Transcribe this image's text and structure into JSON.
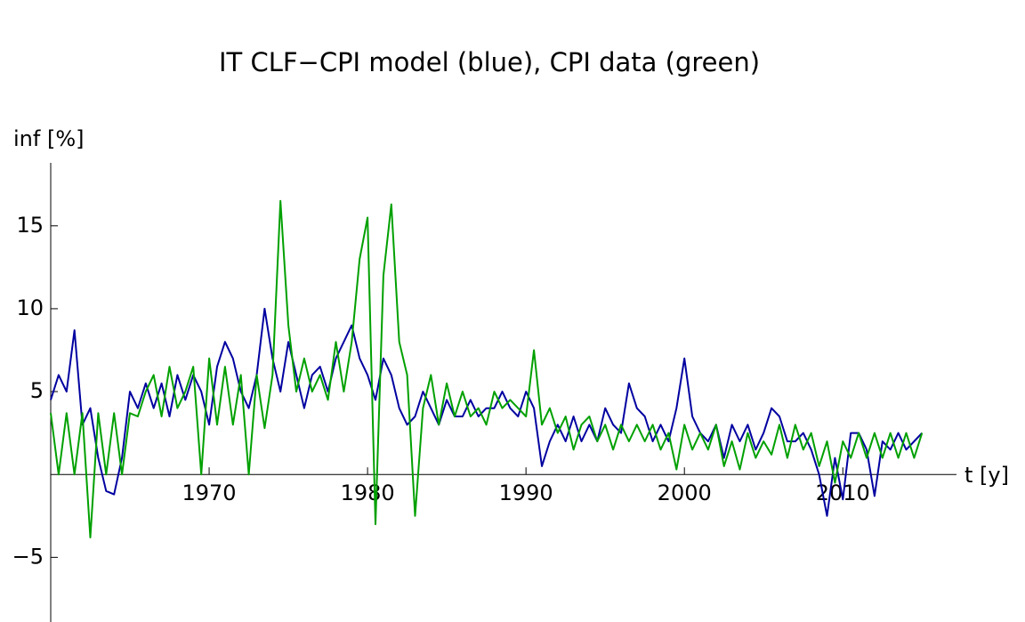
{
  "chart_data": {
    "type": "line",
    "title": "IT CLF−CPI model (blue), CPI data (green)",
    "x_label": "t [y]",
    "y_label": "inf [%]",
    "x": [
      1960,
      1960.5,
      1961,
      1961.5,
      1962,
      1962.5,
      1963,
      1963.5,
      1964,
      1964.5,
      1965,
      1965.5,
      1966,
      1966.5,
      1967,
      1967.5,
      1968,
      1968.5,
      1969,
      1969.5,
      1970,
      1970.5,
      1971,
      1971.5,
      1972,
      1972.5,
      1973,
      1973.5,
      1974,
      1974.5,
      1975,
      1975.5,
      1976,
      1976.5,
      1977,
      1977.5,
      1978,
      1978.5,
      1979,
      1979.5,
      1980,
      1980.5,
      1981,
      1981.5,
      1982,
      1982.5,
      1983,
      1983.5,
      1984,
      1984.5,
      1985,
      1985.5,
      1986,
      1986.5,
      1987,
      1987.5,
      1988,
      1988.5,
      1989,
      1989.5,
      1990,
      1990.5,
      1991,
      1991.5,
      1992,
      1992.5,
      1993,
      1993.5,
      1994,
      1994.5,
      1995,
      1995.5,
      1996,
      1996.5,
      1997,
      1997.5,
      1998,
      1998.5,
      1999,
      1999.5,
      2000,
      2000.5,
      2001,
      2001.5,
      2002,
      2002.5,
      2003,
      2003.5,
      2004,
      2004.5,
      2005,
      2005.5,
      2006,
      2006.5,
      2007,
      2007.5,
      2008,
      2008.5,
      2009,
      2009.5,
      2010,
      2010.5,
      2011,
      2011.5,
      2012,
      2012.5,
      2013,
      2013.5,
      2014,
      2014.5,
      2015
    ],
    "series": [
      {
        "name": "model",
        "color": "#0000a0",
        "values": [
          4.5,
          6,
          5,
          8.7,
          3,
          4,
          1,
          -1,
          -1.2,
          1,
          5,
          4,
          5.5,
          4,
          5.5,
          3.5,
          6,
          4.5,
          6,
          5,
          3,
          6.5,
          8,
          7,
          5,
          4,
          6,
          10,
          7,
          5,
          8,
          6,
          4,
          6,
          6.5,
          5,
          7,
          8,
          9,
          7,
          6,
          4.5,
          7,
          6,
          4,
          3,
          3.5,
          5,
          4,
          3,
          4.5,
          3.5,
          3.5,
          4.5,
          3.5,
          4,
          4,
          5,
          4,
          3.5,
          5,
          4,
          0.5,
          2,
          3,
          2,
          3.5,
          2,
          3,
          2,
          4,
          3,
          2.5,
          5.5,
          4,
          3.5,
          2,
          3,
          2,
          4,
          7,
          3.5,
          2.5,
          2,
          3,
          1,
          3,
          2,
          3,
          1.5,
          2.5,
          4,
          3.5,
          2,
          2,
          2.5,
          1.5,
          0,
          -2.5,
          1,
          -1.5,
          2.5,
          2.5,
          1.5,
          -1.3,
          2,
          1.5,
          2.5,
          1.5,
          2,
          2.5
        ]
      },
      {
        "name": "data",
        "color": "#00a000",
        "values": [
          3.7,
          0,
          3.7,
          0,
          3.7,
          -3.8,
          3.7,
          0,
          3.7,
          0,
          3.7,
          3.5,
          5,
          6,
          3.5,
          6.5,
          4,
          5,
          6.5,
          0,
          7,
          3,
          6.5,
          3,
          6,
          0,
          6,
          2.8,
          6,
          16.5,
          9,
          5,
          7,
          5,
          6,
          4.5,
          8,
          5,
          8,
          13,
          15.5,
          -3,
          12,
          16.3,
          8,
          6,
          -2.5,
          4,
          6,
          3,
          5.5,
          3.5,
          5,
          3.5,
          4,
          3,
          5,
          4,
          4.5,
          4,
          3.5,
          7.5,
          3,
          4,
          2.5,
          3.5,
          1.5,
          3,
          3.5,
          2,
          3,
          1.5,
          3,
          2,
          3,
          2,
          3,
          1.5,
          2.5,
          0.3,
          3,
          1.5,
          2.5,
          1.5,
          3,
          0.5,
          2,
          0.3,
          2.5,
          1,
          2,
          1.2,
          3,
          1,
          3,
          1.5,
          2.5,
          0.5,
          2,
          -0.5,
          2,
          1,
          2.5,
          1,
          2.5,
          1,
          2.5,
          1,
          2.5,
          1,
          2.5
        ]
      }
    ],
    "xlim": [
      1960,
      2016.5
    ],
    "ylim": [
      -8.9,
      18.8
    ],
    "xticks": [
      1970,
      1980,
      1990,
      2000,
      2010
    ],
    "yticks": [
      {
        "value": -5,
        "label": "−5"
      },
      5,
      10,
      15
    ]
  }
}
